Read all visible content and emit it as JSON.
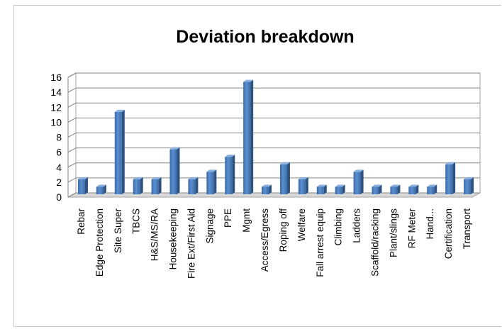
{
  "chart_data": {
    "type": "bar",
    "title": "Deviation breakdown",
    "xlabel": "",
    "ylabel": "",
    "ylim": [
      0,
      16
    ],
    "yticks": [
      0,
      2,
      4,
      6,
      8,
      10,
      12,
      14,
      16
    ],
    "grid": true,
    "legend": "none",
    "bar_color": "#4a7ebb",
    "categories": [
      "Rebar",
      "Edge Protection",
      "Site Super",
      "TBCS",
      "H&S/MS/RA",
      "Housekeeping",
      "Fire Ext/First Aid",
      "Signage",
      "PPE",
      "Mgmt",
      "Access/Egress",
      "Roping off",
      "Welfare",
      "Fall arrest equip",
      "Climbing",
      "Ladders",
      "Scaffold/racking",
      "Plant/slings",
      "RF Meter",
      "Hand...",
      "Certification",
      "Transport"
    ],
    "values": [
      2,
      1,
      11,
      2,
      2,
      6,
      2,
      3,
      5,
      15,
      1,
      4,
      2,
      1,
      1,
      3,
      1,
      1,
      1,
      1,
      4,
      2
    ]
  }
}
